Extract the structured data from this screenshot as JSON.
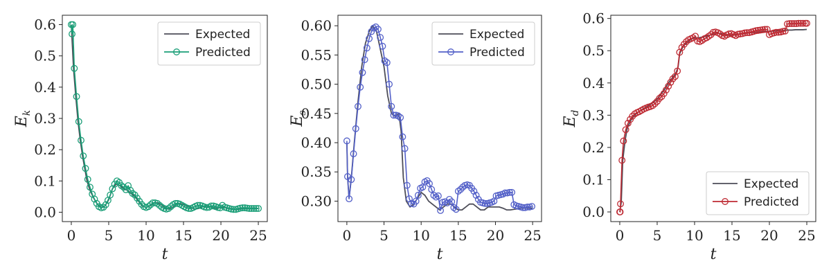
{
  "chart_data": [
    {
      "type": "line",
      "xlabel": "t",
      "ylabel": "E",
      "ylabel_sub": "k",
      "xlim": [
        -1.2,
        26.2
      ],
      "ylim": [
        -0.03,
        0.63
      ],
      "xticks": [
        0,
        5,
        10,
        15,
        20,
        25
      ],
      "yticks": [
        0.0,
        0.1,
        0.2,
        0.3,
        0.4,
        0.5,
        0.6
      ],
      "ytick_decimals": 1,
      "legend": "top-right",
      "series": [
        {
          "name": "Expected",
          "color": "#4d4d58",
          "marker": "none",
          "x": [
            0,
            0.3,
            0.6,
            0.9,
            1.2,
            1.5,
            1.8,
            2.1,
            2.5,
            3.0,
            3.5,
            4.0,
            4.5,
            5.0,
            5.5,
            6.0,
            6.5,
            7.0,
            7.5,
            8.0,
            8.5,
            9.0,
            9.5,
            10.0,
            10.5,
            11.0,
            11.5,
            12.0,
            12.5,
            13.0,
            13.5,
            14.0,
            14.5,
            15.0,
            15.5,
            16.0,
            16.5,
            17.0,
            17.5,
            18.0,
            18.5,
            19.0,
            19.5,
            20.0,
            20.5,
            21.0,
            21.5,
            22.0,
            22.5,
            23.0,
            23.5,
            24.0,
            24.5,
            25.0
          ],
          "y": [
            0.6,
            0.46,
            0.37,
            0.29,
            0.23,
            0.18,
            0.14,
            0.1,
            0.07,
            0.045,
            0.025,
            0.015,
            0.02,
            0.04,
            0.075,
            0.09,
            0.085,
            0.075,
            0.07,
            0.06,
            0.05,
            0.035,
            0.02,
            0.015,
            0.02,
            0.03,
            0.03,
            0.025,
            0.015,
            0.01,
            0.015,
            0.025,
            0.028,
            0.025,
            0.02,
            0.015,
            0.01,
            0.012,
            0.018,
            0.02,
            0.018,
            0.015,
            0.012,
            0.015,
            0.015,
            0.012,
            0.01,
            0.008,
            0.01,
            0.012,
            0.012,
            0.012,
            0.012,
            0.012
          ]
        },
        {
          "name": "Predicted",
          "color": "#1a9e77",
          "marker": "circle",
          "x": [
            0,
            0.1,
            0.2,
            0.4,
            0.7,
            1.0,
            1.3,
            1.6,
            1.9,
            2.2,
            2.5,
            2.8,
            3.1,
            3.4,
            3.7,
            4.0,
            4.3,
            4.6,
            4.9,
            5.2,
            5.5,
            5.8,
            6.1,
            6.4,
            6.7,
            7.0,
            7.3,
            7.6,
            7.9,
            8.2,
            8.5,
            8.8,
            9.1,
            9.4,
            9.7,
            10.0,
            10.3,
            10.6,
            10.9,
            11.2,
            11.5,
            11.8,
            12.1,
            12.4,
            12.7,
            13.0,
            13.3,
            13.6,
            13.9,
            14.2,
            14.5,
            14.8,
            15.1,
            15.4,
            15.7,
            16.0,
            16.3,
            16.6,
            16.9,
            17.2,
            17.5,
            17.8,
            18.1,
            18.4,
            18.7,
            19.0,
            19.3,
            19.6,
            19.9,
            20.2,
            20.5,
            20.8,
            21.1,
            21.4,
            21.7,
            22.0,
            22.3,
            22.6,
            22.9,
            23.2,
            23.5,
            23.8,
            24.1,
            24.4,
            24.7,
            25.0
          ],
          "y": [
            0.6,
            0.57,
            0.6,
            0.46,
            0.37,
            0.29,
            0.23,
            0.18,
            0.14,
            0.105,
            0.08,
            0.058,
            0.042,
            0.028,
            0.018,
            0.014,
            0.016,
            0.024,
            0.038,
            0.055,
            0.075,
            0.09,
            0.1,
            0.095,
            0.085,
            0.08,
            0.072,
            0.085,
            0.07,
            0.06,
            0.055,
            0.045,
            0.035,
            0.025,
            0.018,
            0.015,
            0.018,
            0.024,
            0.03,
            0.03,
            0.028,
            0.022,
            0.016,
            0.012,
            0.01,
            0.012,
            0.018,
            0.024,
            0.028,
            0.028,
            0.026,
            0.022,
            0.018,
            0.014,
            0.012,
            0.012,
            0.015,
            0.019,
            0.022,
            0.022,
            0.02,
            0.017,
            0.015,
            0.016,
            0.02,
            0.02,
            0.018,
            0.015,
            0.014,
            0.022,
            0.016,
            0.014,
            0.012,
            0.01,
            0.009,
            0.009,
            0.011,
            0.013,
            0.014,
            0.014,
            0.013,
            0.012,
            0.012,
            0.012,
            0.012,
            0.012
          ]
        }
      ]
    },
    {
      "type": "line",
      "xlabel": "t",
      "ylabel": "E",
      "ylabel_sub": "s",
      "xlim": [
        -1.2,
        26.2
      ],
      "ylim": [
        0.265,
        0.618
      ],
      "xticks": [
        0,
        5,
        10,
        15,
        20,
        25
      ],
      "yticks": [
        0.3,
        0.35,
        0.4,
        0.45,
        0.5,
        0.55,
        0.6
      ],
      "ytick_decimals": 2,
      "legend": "top-right",
      "series": [
        {
          "name": "Expected",
          "color": "#4d4d58",
          "marker": "none",
          "x": [
            0,
            0.1,
            0.3,
            0.6,
            1.0,
            1.5,
            2.0,
            2.5,
            3.0,
            3.5,
            4.0,
            4.5,
            5.0,
            5.5,
            6.0,
            6.5,
            7.0,
            7.3,
            7.6,
            8.0,
            8.5,
            9.0,
            9.5,
            10.0,
            10.5,
            11.0,
            11.5,
            12.0,
            12.5,
            13.0,
            13.5,
            14.0,
            14.5,
            15.0,
            15.5,
            16.0,
            16.5,
            17.0,
            17.5,
            18.0,
            18.5,
            19.0,
            19.5,
            20.0,
            20.5,
            21.0,
            21.5,
            22.0,
            22.5,
            23.0,
            23.5,
            24.0,
            24.5,
            25.0
          ],
          "y": [
            0.4,
            0.34,
            0.305,
            0.34,
            0.4,
            0.47,
            0.53,
            0.57,
            0.59,
            0.6,
            0.59,
            0.56,
            0.53,
            0.48,
            0.45,
            0.445,
            0.45,
            0.42,
            0.34,
            0.3,
            0.29,
            0.295,
            0.305,
            0.315,
            0.31,
            0.3,
            0.295,
            0.29,
            0.285,
            0.29,
            0.295,
            0.295,
            0.29,
            0.285,
            0.285,
            0.29,
            0.295,
            0.295,
            0.29,
            0.285,
            0.285,
            0.29,
            0.29,
            0.29,
            0.29,
            0.288,
            0.285,
            0.285,
            0.286,
            0.287,
            0.288,
            0.288,
            0.288,
            0.288
          ]
        },
        {
          "name": "Predicted",
          "color": "#5360c8",
          "marker": "circle",
          "x": [
            0,
            0.1,
            0.3,
            0.6,
            0.9,
            1.2,
            1.5,
            1.8,
            2.1,
            2.4,
            2.7,
            3.0,
            3.3,
            3.6,
            3.9,
            4.2,
            4.5,
            4.8,
            5.1,
            5.4,
            5.7,
            6.0,
            6.3,
            6.6,
            6.9,
            7.2,
            7.5,
            7.8,
            8.1,
            8.4,
            8.7,
            9.0,
            9.3,
            9.6,
            9.9,
            10.2,
            10.5,
            10.8,
            11.1,
            11.4,
            11.7,
            12.0,
            12.3,
            12.6,
            12.9,
            13.2,
            13.5,
            13.8,
            14.1,
            14.4,
            14.7,
            15.0,
            15.3,
            15.6,
            15.9,
            16.2,
            16.5,
            16.8,
            17.1,
            17.4,
            17.7,
            18.0,
            18.3,
            18.6,
            18.9,
            19.2,
            19.5,
            19.8,
            20.1,
            20.4,
            20.7,
            21.0,
            21.3,
            21.6,
            21.9,
            22.2,
            22.5,
            22.8,
            23.1,
            23.4,
            23.7,
            24.0,
            24.3,
            24.6,
            24.9
          ],
          "y": [
            0.403,
            0.342,
            0.304,
            0.337,
            0.381,
            0.424,
            0.462,
            0.495,
            0.52,
            0.542,
            0.562,
            0.578,
            0.59,
            0.596,
            0.598,
            0.594,
            0.58,
            0.565,
            0.54,
            0.537,
            0.5,
            0.462,
            0.447,
            0.447,
            0.446,
            0.443,
            0.41,
            0.39,
            0.327,
            0.304,
            0.296,
            0.295,
            0.3,
            0.31,
            0.322,
            0.324,
            0.333,
            0.335,
            0.33,
            0.32,
            0.31,
            0.307,
            0.309,
            0.284,
            0.298,
            0.299,
            0.297,
            0.303,
            0.299,
            0.289,
            0.286,
            0.317,
            0.32,
            0.324,
            0.327,
            0.328,
            0.327,
            0.322,
            0.317,
            0.31,
            0.303,
            0.298,
            0.297,
            0.296,
            0.296,
            0.297,
            0.298,
            0.3,
            0.309,
            0.31,
            0.311,
            0.312,
            0.314,
            0.314,
            0.315,
            0.315,
            0.294,
            0.292,
            0.291,
            0.29,
            0.289,
            0.289,
            0.29,
            0.29,
            0.291
          ]
        }
      ]
    },
    {
      "type": "line",
      "xlabel": "t",
      "ylabel": "E",
      "ylabel_sub": "d",
      "xlim": [
        -1.2,
        26.2
      ],
      "ylim": [
        -0.03,
        0.61
      ],
      "xticks": [
        0,
        5,
        10,
        15,
        20,
        25
      ],
      "yticks": [
        0.0,
        0.1,
        0.2,
        0.3,
        0.4,
        0.5,
        0.6
      ],
      "ytick_decimals": 1,
      "legend": "lower-right",
      "series": [
        {
          "name": "Expected",
          "color": "#4d4d58",
          "marker": "none",
          "x": [
            0,
            0.2,
            0.4,
            0.7,
            1.0,
            1.5,
            2.0,
            2.5,
            3.0,
            3.5,
            4.0,
            4.5,
            5.0,
            5.5,
            6.0,
            6.5,
            7.0,
            7.5,
            7.8,
            8.0,
            8.5,
            9.0,
            9.5,
            10.0,
            10.5,
            11.0,
            11.5,
            12.0,
            12.5,
            13.0,
            13.5,
            14.0,
            14.5,
            15.0,
            15.5,
            16.0,
            16.5,
            17.0,
            17.5,
            18.0,
            18.5,
            19.0,
            19.5,
            20.0,
            20.5,
            21.0,
            21.5,
            22.0,
            22.5,
            23.0,
            23.5,
            24.0,
            24.5,
            25.0
          ],
          "y": [
            0.0,
            0.03,
            0.16,
            0.22,
            0.26,
            0.285,
            0.3,
            0.31,
            0.318,
            0.325,
            0.332,
            0.34,
            0.35,
            0.365,
            0.38,
            0.4,
            0.415,
            0.43,
            0.45,
            0.49,
            0.515,
            0.525,
            0.535,
            0.54,
            0.54,
            0.542,
            0.545,
            0.548,
            0.552,
            0.555,
            0.553,
            0.55,
            0.548,
            0.548,
            0.55,
            0.552,
            0.553,
            0.555,
            0.556,
            0.557,
            0.558,
            0.559,
            0.56,
            0.56,
            0.561,
            0.562,
            0.562,
            0.563,
            0.564,
            0.564,
            0.565,
            0.565,
            0.565,
            0.566
          ]
        },
        {
          "name": "Predicted",
          "color": "#be2a33",
          "marker": "circle",
          "x": [
            0,
            0.05,
            0.1,
            0.3,
            0.5,
            0.8,
            1.1,
            1.4,
            1.7,
            2.0,
            2.3,
            2.6,
            2.9,
            3.2,
            3.5,
            3.8,
            4.1,
            4.4,
            4.7,
            5.0,
            5.3,
            5.6,
            5.9,
            6.2,
            6.5,
            6.8,
            7.1,
            7.4,
            7.7,
            8.0,
            8.3,
            8.6,
            8.9,
            9.2,
            9.5,
            9.8,
            10.1,
            10.4,
            10.7,
            11.0,
            11.3,
            11.6,
            11.9,
            12.2,
            12.5,
            12.8,
            13.1,
            13.4,
            13.7,
            14.0,
            14.3,
            14.6,
            14.9,
            15.2,
            15.5,
            15.8,
            16.1,
            16.4,
            16.7,
            17.0,
            17.3,
            17.6,
            17.9,
            18.2,
            18.5,
            18.8,
            19.1,
            19.4,
            19.7,
            20.0,
            20.3,
            20.6,
            20.9,
            21.2,
            21.5,
            21.8,
            22.1,
            22.4,
            22.7,
            23.0,
            23.3,
            23.6,
            23.9,
            24.2,
            24.5,
            24.8,
            25.0
          ],
          "y": [
            0.0,
            0.0,
            0.025,
            0.16,
            0.22,
            0.255,
            0.275,
            0.287,
            0.297,
            0.304,
            0.308,
            0.311,
            0.315,
            0.319,
            0.322,
            0.325,
            0.327,
            0.33,
            0.336,
            0.343,
            0.352,
            0.358,
            0.367,
            0.378,
            0.39,
            0.402,
            0.413,
            0.42,
            0.437,
            0.495,
            0.51,
            0.52,
            0.528,
            0.534,
            0.537,
            0.54,
            0.545,
            0.53,
            0.528,
            0.532,
            0.537,
            0.54,
            0.545,
            0.55,
            0.557,
            0.558,
            0.556,
            0.552,
            0.547,
            0.545,
            0.549,
            0.552,
            0.553,
            0.55,
            0.547,
            0.551,
            0.552,
            0.553,
            0.555,
            0.556,
            0.556,
            0.558,
            0.56,
            0.562,
            0.563,
            0.564,
            0.565,
            0.566,
            0.566,
            0.55,
            0.553,
            0.555,
            0.557,
            0.557,
            0.558,
            0.56,
            0.561,
            0.583,
            0.584,
            0.584,
            0.584,
            0.584,
            0.585,
            0.585,
            0.585,
            0.585,
            0.585
          ]
        }
      ]
    }
  ]
}
